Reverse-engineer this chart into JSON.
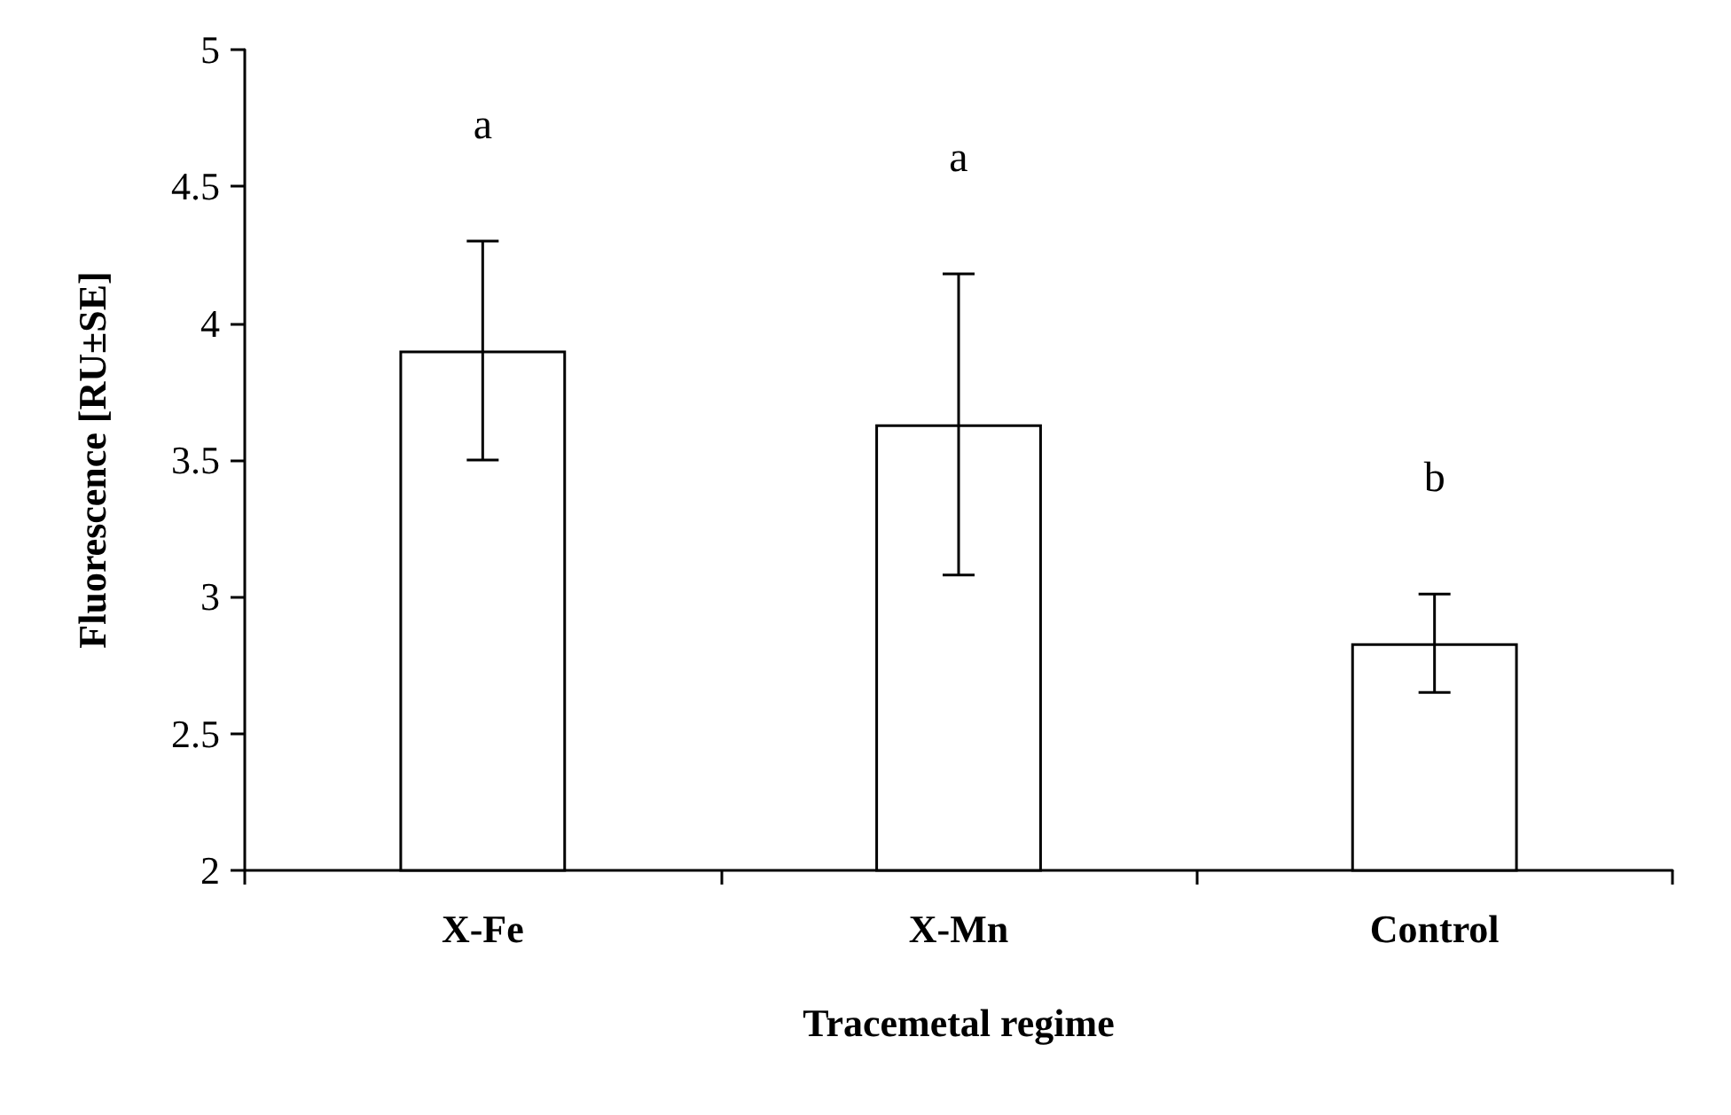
{
  "chart_data": {
    "type": "bar",
    "xlabel": "Tracemetal regime",
    "ylabel": "Fluorescence [RU±SE]",
    "categories": [
      "X-Fe",
      "X-Mn",
      "Control"
    ],
    "values": [
      3.9,
      3.63,
      2.83
    ],
    "errors": [
      0.4,
      0.55,
      0.18
    ],
    "color": "#ffffff",
    "ylim": [
      2,
      5
    ],
    "yticks": [
      2,
      2.5,
      3,
      3.5,
      4,
      4.5,
      5
    ],
    "grid": false,
    "annotations": [
      "a",
      "a",
      "b"
    ]
  }
}
